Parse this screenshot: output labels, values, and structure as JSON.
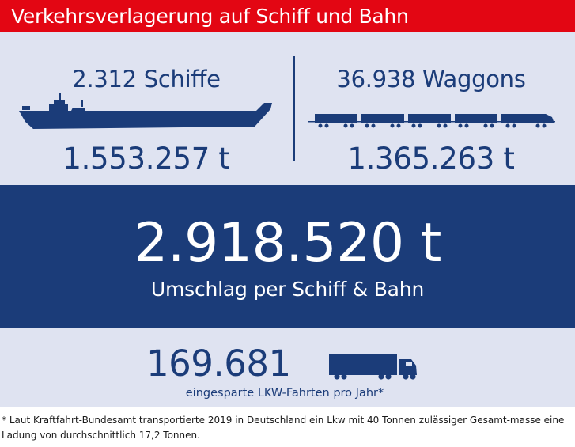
{
  "header": {
    "title": "Verkehrsverlagerung auf Schiff und Bahn"
  },
  "ship": {
    "count": "2.312 Schiffe",
    "tons": "1.553.257 t",
    "icon": "ship-icon"
  },
  "rail": {
    "count": "36.938 Waggons",
    "tons": "1.365.263 t",
    "icon": "train-icon"
  },
  "total": {
    "value": "2.918.520 t",
    "label": "Umschlag per Schiff & Bahn"
  },
  "trucks": {
    "value": "169.681",
    "label": "eingesparte LKW-Fahrten pro Jahr*",
    "icon": "truck-icon"
  },
  "footnote": "* Laut Kraftfahrt-Bundesamt transportierte 2019 in Deutschland ein Lkw mit 40 Tonnen zulässiger Gesamt-masse eine Ladung von durchschnittlich 17,2 Tonnen.",
  "colors": {
    "accent_red": "#e30613",
    "navy": "#1b3c79",
    "panel": "#dfe3f1"
  }
}
